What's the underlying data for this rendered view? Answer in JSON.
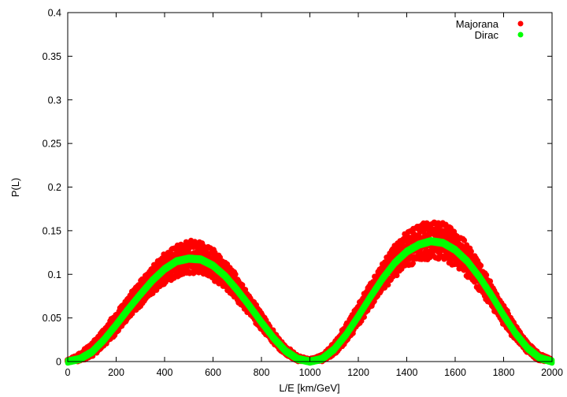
{
  "chart_data": {
    "type": "scatter",
    "title": "",
    "xlabel": "L/E [km/GeV]",
    "ylabel": "P(L)",
    "xlim": [
      0,
      2000
    ],
    "ylim": [
      0,
      0.4
    ],
    "x_ticks": [
      0,
      200,
      400,
      600,
      800,
      1000,
      1200,
      1400,
      1600,
      1800,
      2000
    ],
    "y_ticks": [
      0,
      0.05,
      0.1,
      0.15,
      0.2,
      0.25,
      0.3,
      0.35,
      0.4
    ],
    "x_tick_labels": [
      "0",
      "200",
      "400",
      "600",
      "800",
      "1000",
      "1200",
      "1400",
      "1600",
      "1800",
      "2000"
    ],
    "y_tick_labels": [
      "0",
      "0.05",
      "0.1",
      "0.15",
      "0.2",
      "0.25",
      "0.3",
      "0.35",
      "0.4"
    ],
    "grid": false,
    "legend_position": "top-right",
    "series": [
      {
        "name": "Majorana",
        "color": "#ff0000",
        "x": [
          0,
          50,
          100,
          150,
          200,
          250,
          300,
          350,
          400,
          450,
          500,
          550,
          600,
          650,
          700,
          750,
          800,
          850,
          900,
          950,
          1000,
          1050,
          1100,
          1150,
          1200,
          1250,
          1300,
          1350,
          1400,
          1450,
          1500,
          1550,
          1600,
          1650,
          1700,
          1750,
          1800,
          1850,
          1900,
          1950,
          2000
        ],
        "y_upper": [
          0.002,
          0.01,
          0.022,
          0.038,
          0.056,
          0.075,
          0.093,
          0.11,
          0.124,
          0.135,
          0.14,
          0.138,
          0.13,
          0.116,
          0.098,
          0.077,
          0.056,
          0.035,
          0.018,
          0.007,
          0.003,
          0.008,
          0.022,
          0.043,
          0.067,
          0.091,
          0.114,
          0.134,
          0.149,
          0.158,
          0.162,
          0.16,
          0.151,
          0.136,
          0.115,
          0.09,
          0.065,
          0.042,
          0.022,
          0.009,
          0.003
        ],
        "y_lower": [
          0,
          0,
          0.005,
          0.017,
          0.031,
          0.048,
          0.063,
          0.077,
          0.089,
          0.097,
          0.1,
          0.1,
          0.094,
          0.083,
          0.069,
          0.053,
          0.036,
          0.02,
          0.007,
          0,
          0,
          0,
          0.007,
          0.022,
          0.041,
          0.061,
          0.08,
          0.096,
          0.108,
          0.115,
          0.118,
          0.117,
          0.109,
          0.097,
          0.081,
          0.062,
          0.042,
          0.024,
          0.01,
          0,
          0
        ]
      },
      {
        "name": "Dirac",
        "color": "#00ff00",
        "x": [
          0,
          50,
          100,
          150,
          200,
          250,
          300,
          350,
          400,
          450,
          500,
          550,
          600,
          650,
          700,
          750,
          800,
          850,
          900,
          950,
          1000,
          1050,
          1100,
          1150,
          1200,
          1250,
          1300,
          1350,
          1400,
          1450,
          1500,
          1550,
          1600,
          1650,
          1700,
          1750,
          1800,
          1850,
          1900,
          1950,
          2000
        ],
        "y": [
          0.0,
          0.003,
          0.011,
          0.025,
          0.042,
          0.06,
          0.077,
          0.093,
          0.106,
          0.115,
          0.118,
          0.117,
          0.11,
          0.098,
          0.082,
          0.064,
          0.045,
          0.027,
          0.012,
          0.003,
          0.0,
          0.003,
          0.014,
          0.031,
          0.052,
          0.074,
          0.095,
          0.113,
          0.126,
          0.134,
          0.138,
          0.136,
          0.128,
          0.115,
          0.097,
          0.076,
          0.053,
          0.032,
          0.015,
          0.004,
          0.0
        ]
      }
    ]
  }
}
